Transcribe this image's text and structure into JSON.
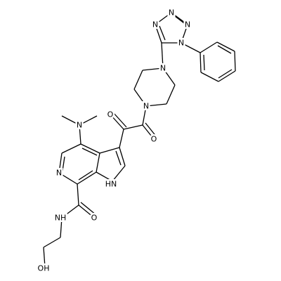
{
  "atoms": [
    {
      "label": "N"
    },
    {
      "label": "N"
    },
    {
      "label": "N"
    },
    {
      "label": "N"
    },
    {
      "label": "N"
    },
    {
      "label": "N"
    },
    {
      "label": "O"
    },
    {
      "label": "O"
    },
    {
      "label": "N"
    },
    {
      "label": "N"
    },
    {
      "label": "HN"
    },
    {
      "label": "O"
    },
    {
      "label": "NH"
    },
    {
      "label": "OH"
    }
  ]
}
